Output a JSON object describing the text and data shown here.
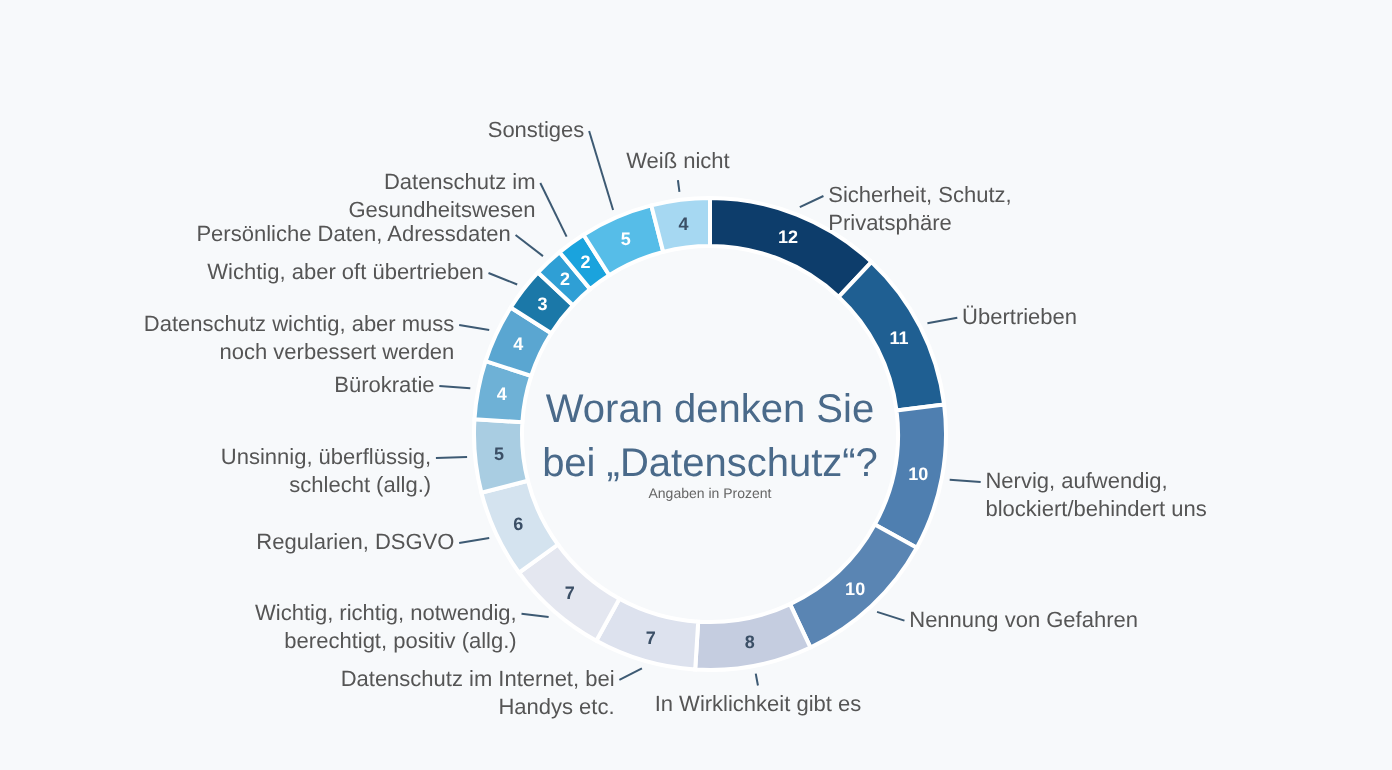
{
  "chart_data": {
    "type": "donut",
    "title": "Woran denken Sie bei „Datenschutz“?",
    "subtitle": "Angaben in Prozent",
    "categories": [
      "Sicherheit, Schutz, Privatsphäre",
      "Übertrieben",
      "Nervig, aufwendig, blockiert/behindert uns",
      "Nennung von Gefahren",
      "In Wirklichkeit gibt es",
      "Datenschutz im Internet, bei Handys etc.",
      "Wichtig, richtig, notwendig, berechtigt, positiv (allg.)",
      "Regularien, DSGVO",
      "Unsinnig, überflüssig, schlecht (allg.)",
      "Bürokratie",
      "Datenschutz wichtig, aber muss noch verbessert werden",
      "Wichtig, aber oft übertrieben",
      "Persönliche Daten, Adressdaten",
      "Datenschutz im Gesundheitswesen",
      "Sonstiges",
      "Weiß nicht"
    ],
    "values": [
      12,
      11,
      10,
      10,
      8,
      7,
      7,
      6,
      5,
      4,
      4,
      3,
      2,
      2,
      5,
      4
    ],
    "colors": [
      "#0d3d6b",
      "#1f5f92",
      "#4f7fb0",
      "#5a85b3",
      "#c5cde0",
      "#dde2ee",
      "#e4e7f0",
      "#d4e3ef",
      "#a9cde2",
      "#6eb1d6",
      "#5aa6d1",
      "#1b78a8",
      "#2f9fd5",
      "#1aa3dd",
      "#56bde8",
      "#a6d8f2"
    ],
    "data_labels": true
  }
}
